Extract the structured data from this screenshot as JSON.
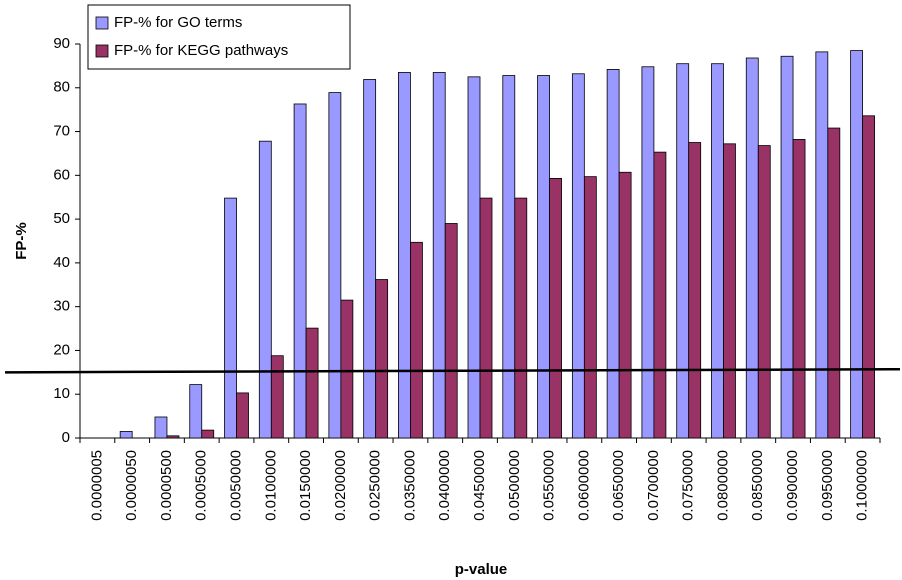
{
  "chart_data": {
    "type": "bar",
    "x_label": "p-value",
    "y_label": "FP-%",
    "categories": [
      "0.0000005",
      "0.0000050",
      "0.0000500",
      "0.0005000",
      "0.0050000",
      "0.0100000",
      "0.0150000",
      "0.0200000",
      "0.0250000",
      "0.0350000",
      "0.0400000",
      "0.0450000",
      "0.0500000",
      "0.0550000",
      "0.0600000",
      "0.0650000",
      "0.0700000",
      "0.0750000",
      "0.0800000",
      "0.0850000",
      "0.0900000",
      "0.0950000",
      "0.1000000"
    ],
    "series": [
      {
        "name": "FP-% for GO terms",
        "color": "#9999ff",
        "values": [
          0,
          1.5,
          4.8,
          12.2,
          54.8,
          67.8,
          76.3,
          78.9,
          81.9,
          83.5,
          83.5,
          82.5,
          82.8,
          82.8,
          83.2,
          84.2,
          84.8,
          85.5,
          85.5,
          86.8,
          87.2,
          88.2,
          88.5
        ]
      },
      {
        "name": "FP-% for KEGG pathways",
        "color": "#993366",
        "values": [
          0,
          0,
          0.5,
          1.8,
          10.3,
          18.8,
          25.1,
          31.5,
          36.2,
          44.7,
          49.0,
          54.8,
          54.8,
          59.3,
          59.7,
          60.7,
          65.3,
          67.5,
          67.2,
          66.8,
          68.2,
          70.8,
          73.6
        ]
      }
    ],
    "threshold_line": [
      15,
      15.7
    ],
    "ylim": [
      0,
      90
    ],
    "yticks": [
      0,
      10,
      20,
      30,
      40,
      50,
      60,
      70,
      80,
      90
    ],
    "grid": false,
    "legend": "top-left"
  }
}
